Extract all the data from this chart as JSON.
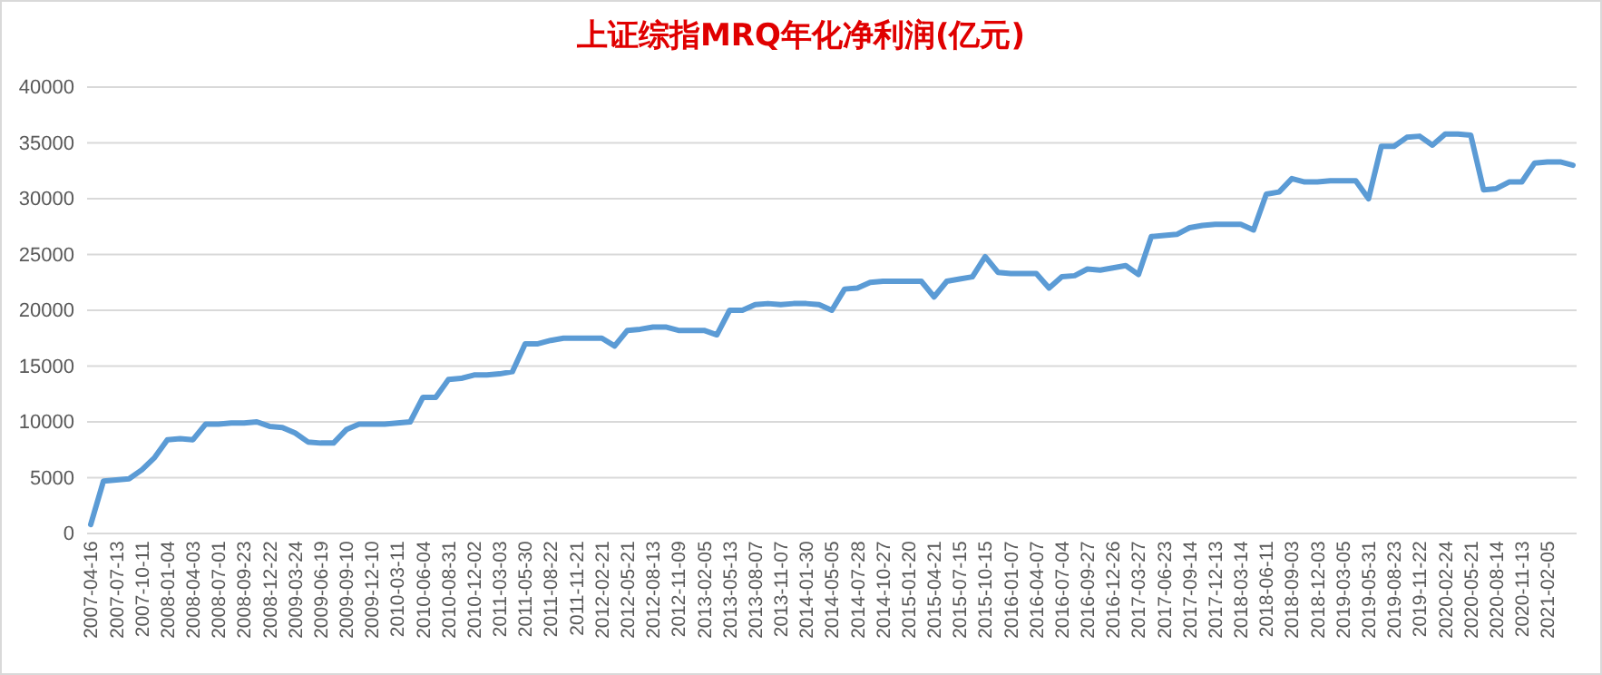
{
  "chart_data": {
    "type": "line",
    "title": "上证综指MRQ年化净利润(亿元)",
    "categories": [
      "2007-04-16",
      null,
      "2007-07-13",
      null,
      "2007-10-11",
      null,
      "2008-01-04",
      null,
      "2008-04-03",
      null,
      "2008-07-01",
      null,
      "2008-09-23",
      null,
      "2008-12-22",
      null,
      "2009-03-24",
      null,
      "2009-06-19",
      null,
      "2009-09-10",
      null,
      "2009-12-10",
      null,
      "2010-03-11",
      null,
      "2010-06-04",
      null,
      "2010-08-31",
      null,
      "2010-12-02",
      null,
      "2011-03-03",
      null,
      "2011-05-30",
      null,
      "2011-08-22",
      null,
      "2011-11-21",
      null,
      "2012-02-21",
      null,
      "2012-05-21",
      null,
      "2012-08-13",
      null,
      "2012-11-09",
      null,
      "2013-02-05",
      null,
      "2013-05-13",
      null,
      "2013-08-07",
      null,
      "2013-11-07",
      null,
      "2014-01-30",
      null,
      "2014-05-05",
      null,
      "2014-07-28",
      null,
      "2014-10-27",
      null,
      "2015-01-20",
      null,
      "2015-04-21",
      null,
      "2015-07-15",
      null,
      "2015-10-15",
      null,
      "2016-01-07",
      null,
      "2016-04-07",
      null,
      "2016-07-04",
      null,
      "2016-09-27",
      null,
      "2016-12-26",
      null,
      "2017-03-27",
      null,
      "2017-06-23",
      null,
      "2017-09-14",
      null,
      "2017-12-13",
      null,
      "2018-03-14",
      null,
      "2018-06-11",
      null,
      "2018-09-03",
      null,
      "2018-12-03",
      null,
      "2019-03-05",
      null,
      "2019-05-31",
      null,
      "2019-08-23",
      null,
      "2019-11-22",
      null,
      "2020-02-24",
      null,
      "2020-05-21",
      null,
      "2020-08-14",
      null,
      "2020-11-13",
      null,
      "2021-02-05",
      null,
      null
    ],
    "series": [
      {
        "color": "#5b9bd5",
        "values": [
          800,
          4700,
          4800,
          4900,
          5700,
          6800,
          8400,
          8500,
          8400,
          9800,
          9800,
          9900,
          9900,
          10000,
          9600,
          9500,
          9000,
          8200,
          8100,
          8100,
          9300,
          9800,
          9800,
          9800,
          9900,
          10000,
          12200,
          12200,
          13800,
          13900,
          14200,
          14200,
          14300,
          14500,
          17000,
          17000,
          17300,
          17500,
          17500,
          17500,
          17500,
          16800,
          18200,
          18300,
          18500,
          18500,
          18200,
          18200,
          18200,
          17800,
          20000,
          20000,
          20500,
          20600,
          20500,
          20600,
          20600,
          20500,
          20000,
          21900,
          22000,
          22500,
          22600,
          22600,
          22600,
          22600,
          21200,
          22600,
          22800,
          23000,
          24800,
          23400,
          23300,
          23300,
          23300,
          22000,
          23000,
          23100,
          23700,
          23600,
          23800,
          24000,
          23200,
          26600,
          26700,
          26800,
          27400,
          27600,
          27700,
          27700,
          27700,
          27200,
          30400,
          30600,
          31800,
          31500,
          31500,
          31600,
          31600,
          31600,
          30000,
          34700,
          34700,
          35500,
          35600,
          34800,
          35800,
          35800,
          35700,
          30800,
          30900,
          31500,
          31500,
          33200,
          33300,
          33300,
          33000
        ]
      }
    ],
    "ylim": [
      0,
      40000
    ],
    "yticks": [
      0,
      5000,
      10000,
      15000,
      20000,
      25000,
      30000,
      35000,
      40000
    ],
    "grid": "y",
    "line_style": "solid",
    "marker": "none"
  }
}
